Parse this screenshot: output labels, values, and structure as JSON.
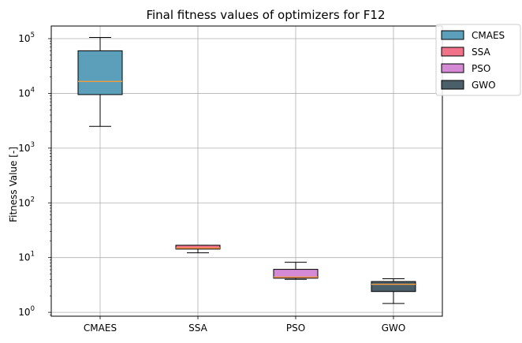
{
  "chart_data": {
    "type": "box",
    "title": "Final fitness values of optimizers for F12",
    "xlabel": "",
    "ylabel": "Fitness Value [-]",
    "yscale": "log",
    "ylim": [
      0.85,
      170000
    ],
    "grid": true,
    "legend_position": "top-right, outside plot",
    "categories": [
      "CMAES",
      "SSA",
      "PSO",
      "GWO"
    ],
    "y_tick_labels": [
      {
        "value": 1,
        "base": "10",
        "exp": "0"
      },
      {
        "value": 10,
        "base": "10",
        "exp": "1"
      },
      {
        "value": 100,
        "base": "10",
        "exp": "2"
      },
      {
        "value": 1000,
        "base": "10",
        "exp": "3"
      },
      {
        "value": 10000,
        "base": "10",
        "exp": "4"
      },
      {
        "value": 100000,
        "base": "10",
        "exp": "5"
      }
    ],
    "series": [
      {
        "name": "CMAES",
        "color": "#5b9fba",
        "whisker_low": 2500,
        "q1": 9500,
        "median": 16500,
        "q3": 60000,
        "whisker_high": 105000
      },
      {
        "name": "SSA",
        "color": "#f0738a",
        "whisker_low": 12.2,
        "q1": 14.3,
        "median": 14.9,
        "q3": 16.8,
        "whisker_high": 16.8
      },
      {
        "name": "PSO",
        "color": "#d58ad6",
        "whisker_low": 4.0,
        "q1": 4.2,
        "median": 4.4,
        "q3": 6.1,
        "whisker_high": 8.2
      },
      {
        "name": "GWO",
        "color": "#4b5f6a",
        "whisker_low": 1.45,
        "q1": 2.4,
        "median": 3.25,
        "q3": 3.65,
        "whisker_high": 4.1
      }
    ],
    "median_color": "#f59b3a"
  }
}
